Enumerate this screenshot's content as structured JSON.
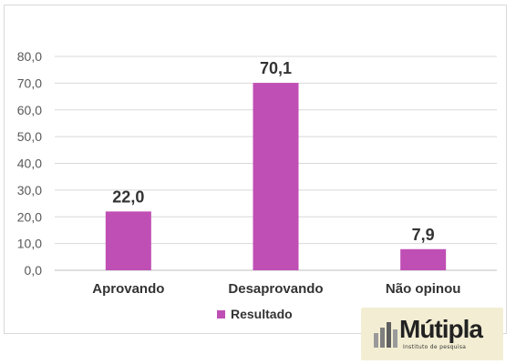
{
  "chart_data": {
    "type": "bar",
    "categories": [
      "Aprovando",
      "Desaprovando",
      "Não opinou"
    ],
    "series": [
      {
        "name": "Resultado",
        "values": [
          22.0,
          70.1,
          7.9
        ]
      }
    ],
    "data_labels": [
      "22,0",
      "70,1",
      "7,9"
    ],
    "ylim": [
      0,
      80
    ],
    "y_ticks": [
      0,
      10,
      20,
      30,
      40,
      50,
      60,
      70,
      80
    ],
    "y_tick_labels": [
      "0,0",
      "10,0",
      "20,0",
      "30,0",
      "40,0",
      "50,0",
      "60,0",
      "70,0",
      "80,0"
    ],
    "grid": true,
    "legend": "bottom",
    "bar_color": "#c04fb5"
  },
  "logo": {
    "name": "Mútipla",
    "tagline": "Instituto de pesquisa"
  }
}
